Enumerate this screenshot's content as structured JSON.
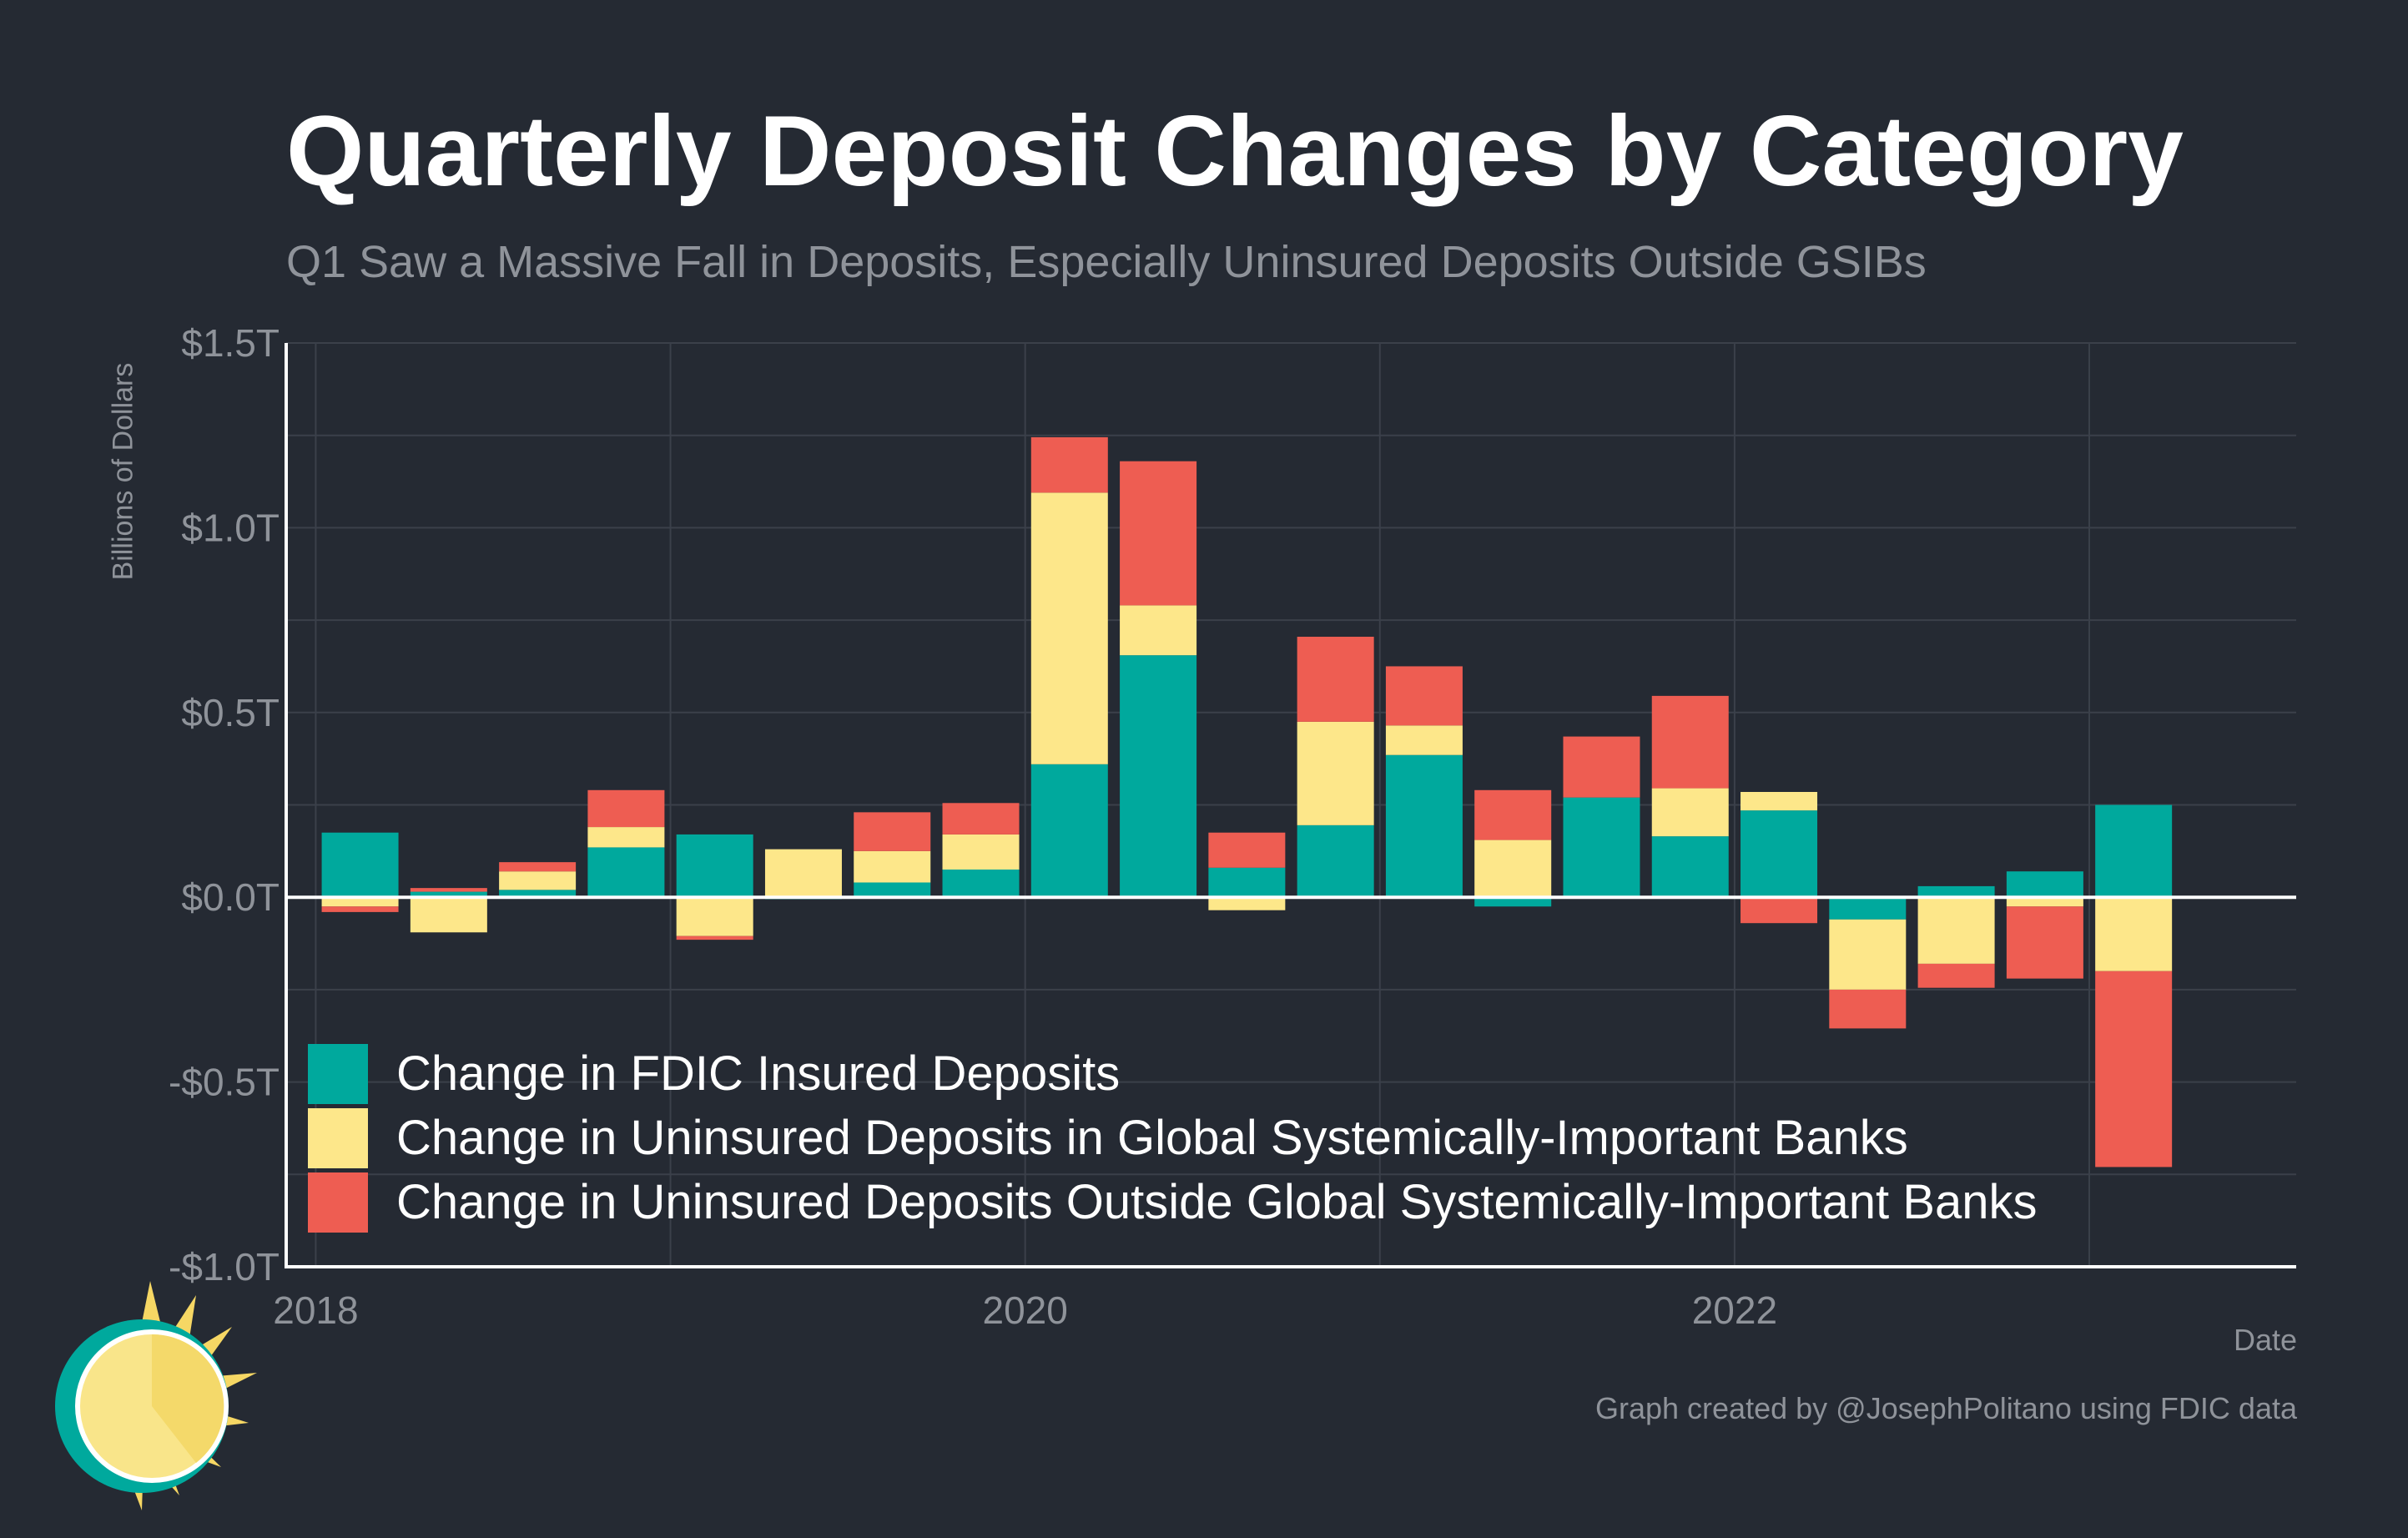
{
  "title": "Quarterly Deposit Changes by Category",
  "subtitle": "Q1 Saw a Massive Fall in Deposits, Especially Uninsured Deposits Outside GSIBs",
  "caption": "Graph created by @JosephPolitano using FDIC data",
  "colors": {
    "background": "#252a33",
    "insured": "#00a99d",
    "gsib": "#fde78a",
    "non_gsib": "#ee5d52",
    "grid": "#3b404a",
    "axis": "#ffffff",
    "muted_text": "#8f939a"
  },
  "logo": {
    "icon": "sun-logo-icon"
  },
  "chart_data": {
    "type": "bar",
    "stacked": true,
    "title": "Quarterly Deposit Changes by Category",
    "xlabel": "Date",
    "ylabel": "Billions of Dollars",
    "ylim": [
      -1.0,
      1.5
    ],
    "xlim": [
      "2017-12",
      "2023-08"
    ],
    "y_ticks": [
      {
        "value": 1.5,
        "label": "$1.5T"
      },
      {
        "value": 1.0,
        "label": "$1.0T"
      },
      {
        "value": 0.5,
        "label": "$0.5T"
      },
      {
        "value": 0.0,
        "label": "$0.0T"
      },
      {
        "value": -0.5,
        "label": "-$0.5T"
      },
      {
        "value": -1.0,
        "label": "-$1.0T"
      }
    ],
    "x_ticks": [
      {
        "value": "2018-01",
        "label": "2018"
      },
      {
        "value": "2020-01",
        "label": "2020"
      },
      {
        "value": "2022-01",
        "label": "2022"
      }
    ],
    "grid": true,
    "legend_position": "bottom-left",
    "x": [
      "2018-Q1",
      "2018-Q2",
      "2018-Q3",
      "2018-Q4",
      "2019-Q1",
      "2019-Q2",
      "2019-Q3",
      "2019-Q4",
      "2020-Q1",
      "2020-Q2",
      "2020-Q3",
      "2020-Q4",
      "2021-Q1",
      "2021-Q2",
      "2021-Q3",
      "2021-Q4",
      "2022-Q1",
      "2022-Q2",
      "2022-Q3",
      "2022-Q4",
      "2023-Q1"
    ],
    "series": [
      {
        "name": "Change in FDIC Insured Deposits",
        "color": "#00a99d",
        "values": [
          0.175,
          0.015,
          0.02,
          0.135,
          0.17,
          -0.005,
          0.04,
          0.075,
          0.36,
          0.655,
          0.08,
          0.195,
          0.385,
          -0.025,
          0.27,
          0.165,
          0.235,
          -0.06,
          0.03,
          0.07,
          0.25
        ]
      },
      {
        "name": "Change in Uninsured Deposits in Global Systemically-Important Banks",
        "color": "#fde78a",
        "values": [
          -0.025,
          -0.095,
          0.05,
          0.055,
          -0.105,
          0.13,
          0.085,
          0.095,
          0.735,
          0.135,
          -0.035,
          0.28,
          0.08,
          0.155,
          0.0,
          0.13,
          0.05,
          -0.19,
          -0.18,
          -0.025,
          -0.2
        ]
      },
      {
        "name": "Change in Uninsured Deposits Outside Global Systemically-Important Banks",
        "color": "#ee5d52",
        "values": [
          -0.015,
          0.01,
          0.025,
          0.1,
          -0.01,
          0.0,
          0.105,
          0.085,
          0.15,
          0.39,
          0.095,
          0.23,
          0.16,
          0.135,
          0.165,
          0.25,
          -0.07,
          -0.105,
          -0.065,
          -0.195,
          -0.53
        ]
      }
    ]
  }
}
